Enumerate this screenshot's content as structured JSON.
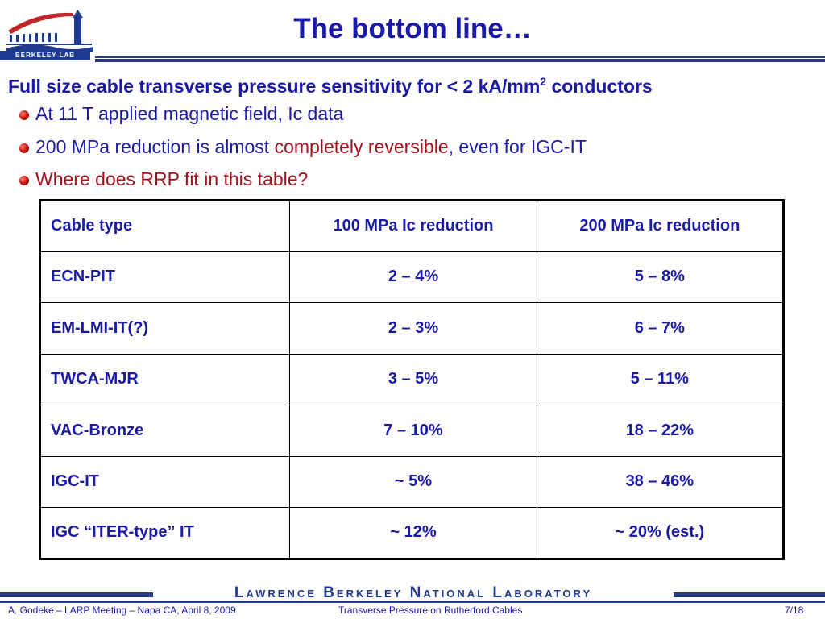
{
  "header": {
    "logo_caption": "BERKELEY LAB",
    "title": "The bottom line…"
  },
  "subtitle": {
    "text": "Full size cable transverse pressure sensitivity for < 2 kA/mm",
    "superscript": "2",
    "suffix": " conductors"
  },
  "bullets": [
    {
      "parts": [
        {
          "text": "At 11 T applied magnetic field, Ic data",
          "color": "#1a1aa6"
        }
      ]
    },
    {
      "parts": [
        {
          "text": "200 MPa reduction is almost ",
          "color": "#1a1aa6"
        },
        {
          "text": "completely reversible",
          "color": "#a3121c"
        },
        {
          "text": ", even for IGC-IT",
          "color": "#1a1aa6"
        }
      ]
    },
    {
      "parts": [
        {
          "text": "Where does RRP fit in this table?",
          "color": "#a3121c"
        }
      ]
    }
  ],
  "table": {
    "headers": [
      "Cable type",
      "100 MPa Ic reduction",
      "200 MPa Ic reduction"
    ],
    "rows": [
      [
        "ECN-PIT",
        "2 – 4%",
        "5 – 8%"
      ],
      [
        "EM-LMI-IT(?)",
        "2 – 3%",
        "6 – 7%"
      ],
      [
        "TWCA-MJR",
        "3 – 5%",
        "5 – 11%"
      ],
      [
        "VAC-Bronze",
        "7 – 10%",
        "18 – 22%"
      ],
      [
        "IGC-IT",
        "~ 5%",
        "38 – 46%"
      ],
      [
        "IGC “ITER-type” IT",
        "~ 12%",
        "~ 20% (est.)"
      ]
    ]
  },
  "footer": {
    "lab_name": "Lawrence Berkeley National Laboratory",
    "left": "A. Godeke – LARP Meeting – Napa CA, April 8, 2009",
    "center": "Transverse Pressure on Rutherford Cables",
    "page": "7/18"
  },
  "colors": {
    "title_blue": "#1a1aa6",
    "highlight_red": "#a3121c",
    "rule_navy": "#2a3c86"
  }
}
